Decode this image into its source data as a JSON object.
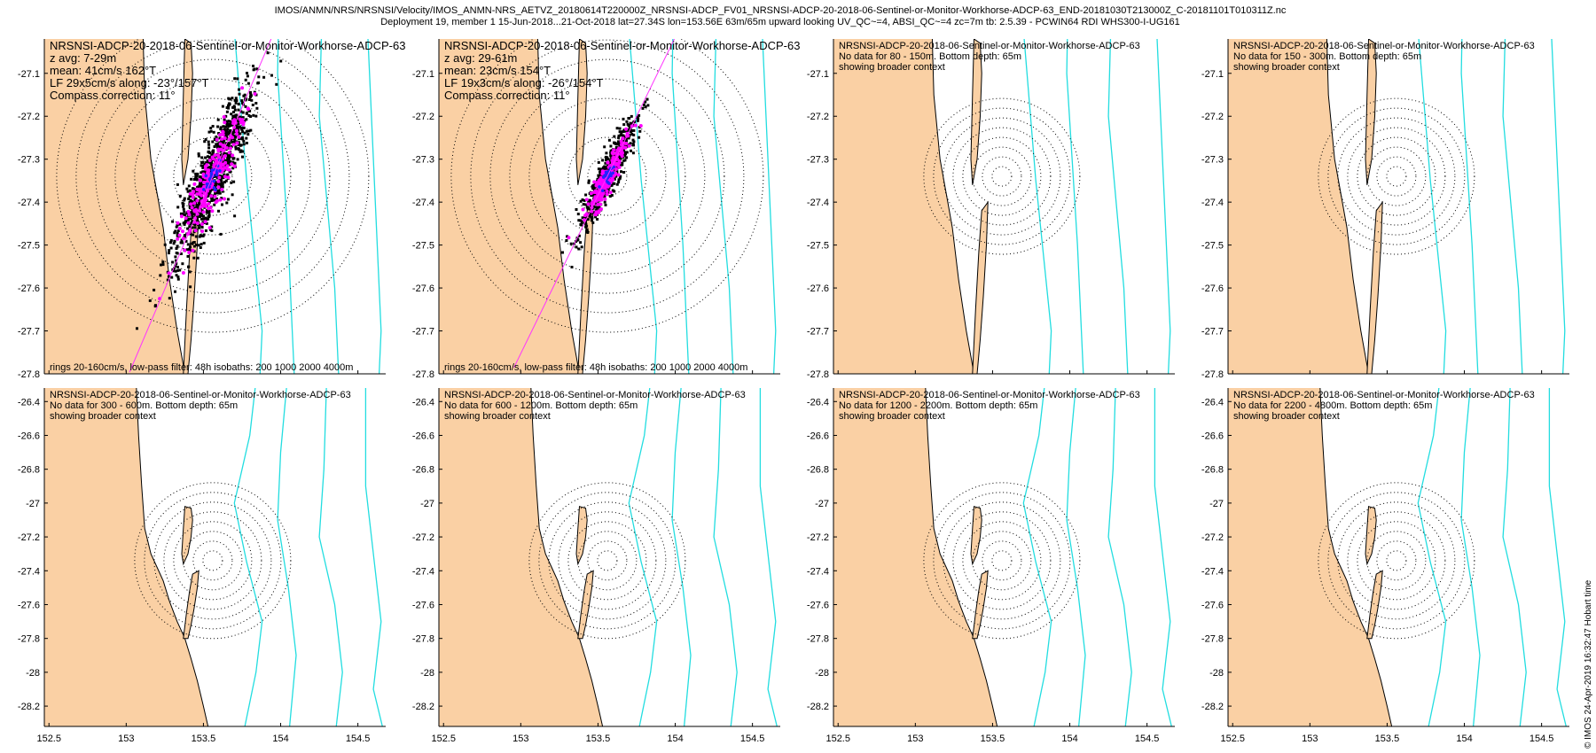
{
  "header": {
    "line1": "IMOS/ANMN/NRS/NRSNSI/Velocity/IMOS_ANMN-NRS_AETVZ_20180614T220000Z_NRSNSI-ADCP_FV01_NRSNSI-ADCP-20-2018-06-Sentinel-or-Monitor-Workhorse-ADCP-63_END-20181030T213000Z_C-20181101T010311Z.nc",
    "line2": "Deployment 19, member 1 15-Jun-2018...21-Oct-2018 lat=27.34S lon=153.56E 63m/65m upward looking UV_QC~=4, ABSI_QC~=4 zc=7m tb: 2.5.39 - PCWIN64 RDI WHS300-I-UG161"
  },
  "copyright": "© IMOS 24-Apr-2019 16:32:47 Hobart time",
  "colors": {
    "land": "#fad0a4",
    "isobath": "#22dde0",
    "scatter_black": "#000000",
    "scatter_magenta": "#ff00ff",
    "scatter_blue": "#2222ff",
    "line": "#ff33ff"
  },
  "panels": [
    {
      "title": "NRSNSI-ADCP-20-2018-06-Sentinel-or-Monitor-Workhorse-ADCP-63",
      "lines": [
        "z avg: 7-29m",
        "mean: 41cm/s 162°T",
        "LF 29x5cm/s along: -23°/157°T",
        "Compass correction: 11°"
      ],
      "footer": "rings 20-160cm/s, low-pass filter: 48h isobaths: 200 1000 2000 4000m"
    },
    {
      "title": "NRSNSI-ADCP-20-2018-06-Sentinel-or-Monitor-Workhorse-ADCP-63",
      "lines": [
        "z avg: 29-61m",
        "mean: 23cm/s 154°T",
        "LF 19x3cm/s along: -26°/154°T",
        "Compass correction: 11°"
      ],
      "footer": "rings 20-160cm/s, low-pass filter: 48h isobaths: 200 1000 2000 4000m"
    },
    {
      "title": "NRSNSI-ADCP-20-2018-06-Sentinel-or-Monitor-Workhorse-ADCP-63",
      "lines": [
        "No data for 80 - 150m. Bottom depth: 65m",
        "showing broader context"
      ],
      "footer": ""
    },
    {
      "title": "NRSNSI-ADCP-20-2018-06-Sentinel-or-Monitor-Workhorse-ADCP-63",
      "lines": [
        "No data for 150 - 300m. Bottom depth: 65m",
        "showing broader context"
      ],
      "footer": ""
    },
    {
      "title": "NRSNSI-ADCP-20-2018-06-Sentinel-or-Monitor-Workhorse-ADCP-63",
      "lines": [
        "No data for 300 - 600m. Bottom depth: 65m",
        "showing broader context"
      ],
      "footer": ""
    },
    {
      "title": "NRSNSI-ADCP-20-2018-06-Sentinel-or-Monitor-Workhorse-ADCP-63",
      "lines": [
        "No data for 600 - 1200m. Bottom depth: 65m",
        "showing broader context"
      ],
      "footer": ""
    },
    {
      "title": "NRSNSI-ADCP-20-2018-06-Sentinel-or-Monitor-Workhorse-ADCP-63",
      "lines": [
        "No data for 1200 - 2200m. Bottom depth: 65m",
        "showing broader context"
      ],
      "footer": ""
    },
    {
      "title": "NRSNSI-ADCP-20-2018-06-Sentinel-or-Monitor-Workhorse-ADCP-63",
      "lines": [
        "No data for 2200 - 4800m. Bottom depth: 65m",
        "showing broader context"
      ],
      "footer": ""
    }
  ],
  "chart_data": {
    "type": "scatter",
    "top_row_yticks": [
      "-27.1",
      "-27.2",
      "-27.3",
      "-27.4",
      "-27.5",
      "-27.6",
      "-27.7",
      "-27.8"
    ],
    "bottom_row_yticks": [
      "-26.4",
      "-26.6",
      "-26.8",
      "-27",
      "-27.2",
      "-27.4",
      "-27.6",
      "-27.8",
      "-28",
      "-28.2"
    ],
    "xticks": [
      "152.5",
      "153",
      "153.5",
      "154",
      "154.5"
    ],
    "top_row_ylim": [
      -27.8,
      -27.02
    ],
    "bottom_row_ylim": [
      -28.32,
      -26.32
    ],
    "xlim": [
      152.47,
      154.68
    ],
    "mooring": {
      "lon": 153.56,
      "lat": -27.34
    },
    "ring_speeds_cm_s": [
      20,
      40,
      60,
      80,
      100,
      120,
      140,
      160
    ],
    "series": [
      {
        "panel": 1,
        "depth": "7-29m",
        "mean_speed_cm_s": 41,
        "mean_dir_degT": 162,
        "axis_dir_degT": 157
      },
      {
        "panel": 2,
        "depth": "29-61m",
        "mean_speed_cm_s": 23,
        "mean_dir_degT": 154,
        "axis_dir_degT": 154
      }
    ]
  }
}
